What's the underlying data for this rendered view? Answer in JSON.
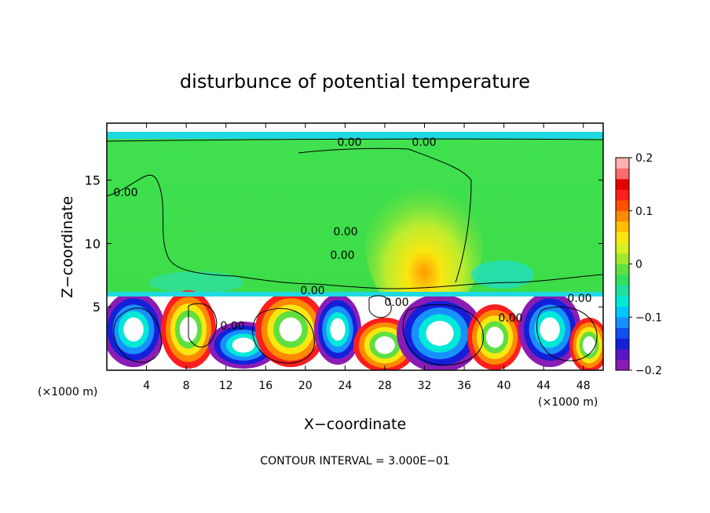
{
  "chart_data": {
    "type": "heatmap",
    "title": "disturbunce of potential temperature",
    "xlabel": "X−coordinate",
    "ylabel": "Z−coordinate",
    "x_unit": "(×1000 m)",
    "y_unit": "(×1000 m)",
    "xlim": [
      0,
      50
    ],
    "ylim": [
      0,
      19.5
    ],
    "x_ticks": [
      4,
      8,
      12,
      16,
      20,
      24,
      28,
      32,
      36,
      40,
      44,
      48
    ],
    "y_ticks": [
      5,
      10,
      15
    ],
    "colorbar": {
      "range": [
        -0.2,
        0.2
      ],
      "ticks": [
        0.2,
        0.1,
        0,
        -0.1,
        -0.2
      ],
      "tick_labels": [
        "0.2",
        "0.1",
        "0",
        "−0.1",
        "−0.2"
      ],
      "colors": [
        "#8a1cb5",
        "#5a14c8",
        "#1420d8",
        "#1050f0",
        "#1890ff",
        "#00c8ff",
        "#00e8d8",
        "#20e0a0",
        "#30e060",
        "#60e040",
        "#a0e830",
        "#d8f020",
        "#f8e810",
        "#ffc000",
        "#ff8a00",
        "#ff5000",
        "#ff1e1e",
        "#e80000",
        "#ff6a6a",
        "#ffb0b0"
      ]
    },
    "contour_labels": [
      "0.00",
      "0.00",
      "0.00",
      "0.00",
      "0.00",
      "0.00",
      "0.00",
      "0.00",
      "0.00",
      "0.00"
    ],
    "footer": "CONTOUR INTERVAL = 3.000E−01"
  }
}
